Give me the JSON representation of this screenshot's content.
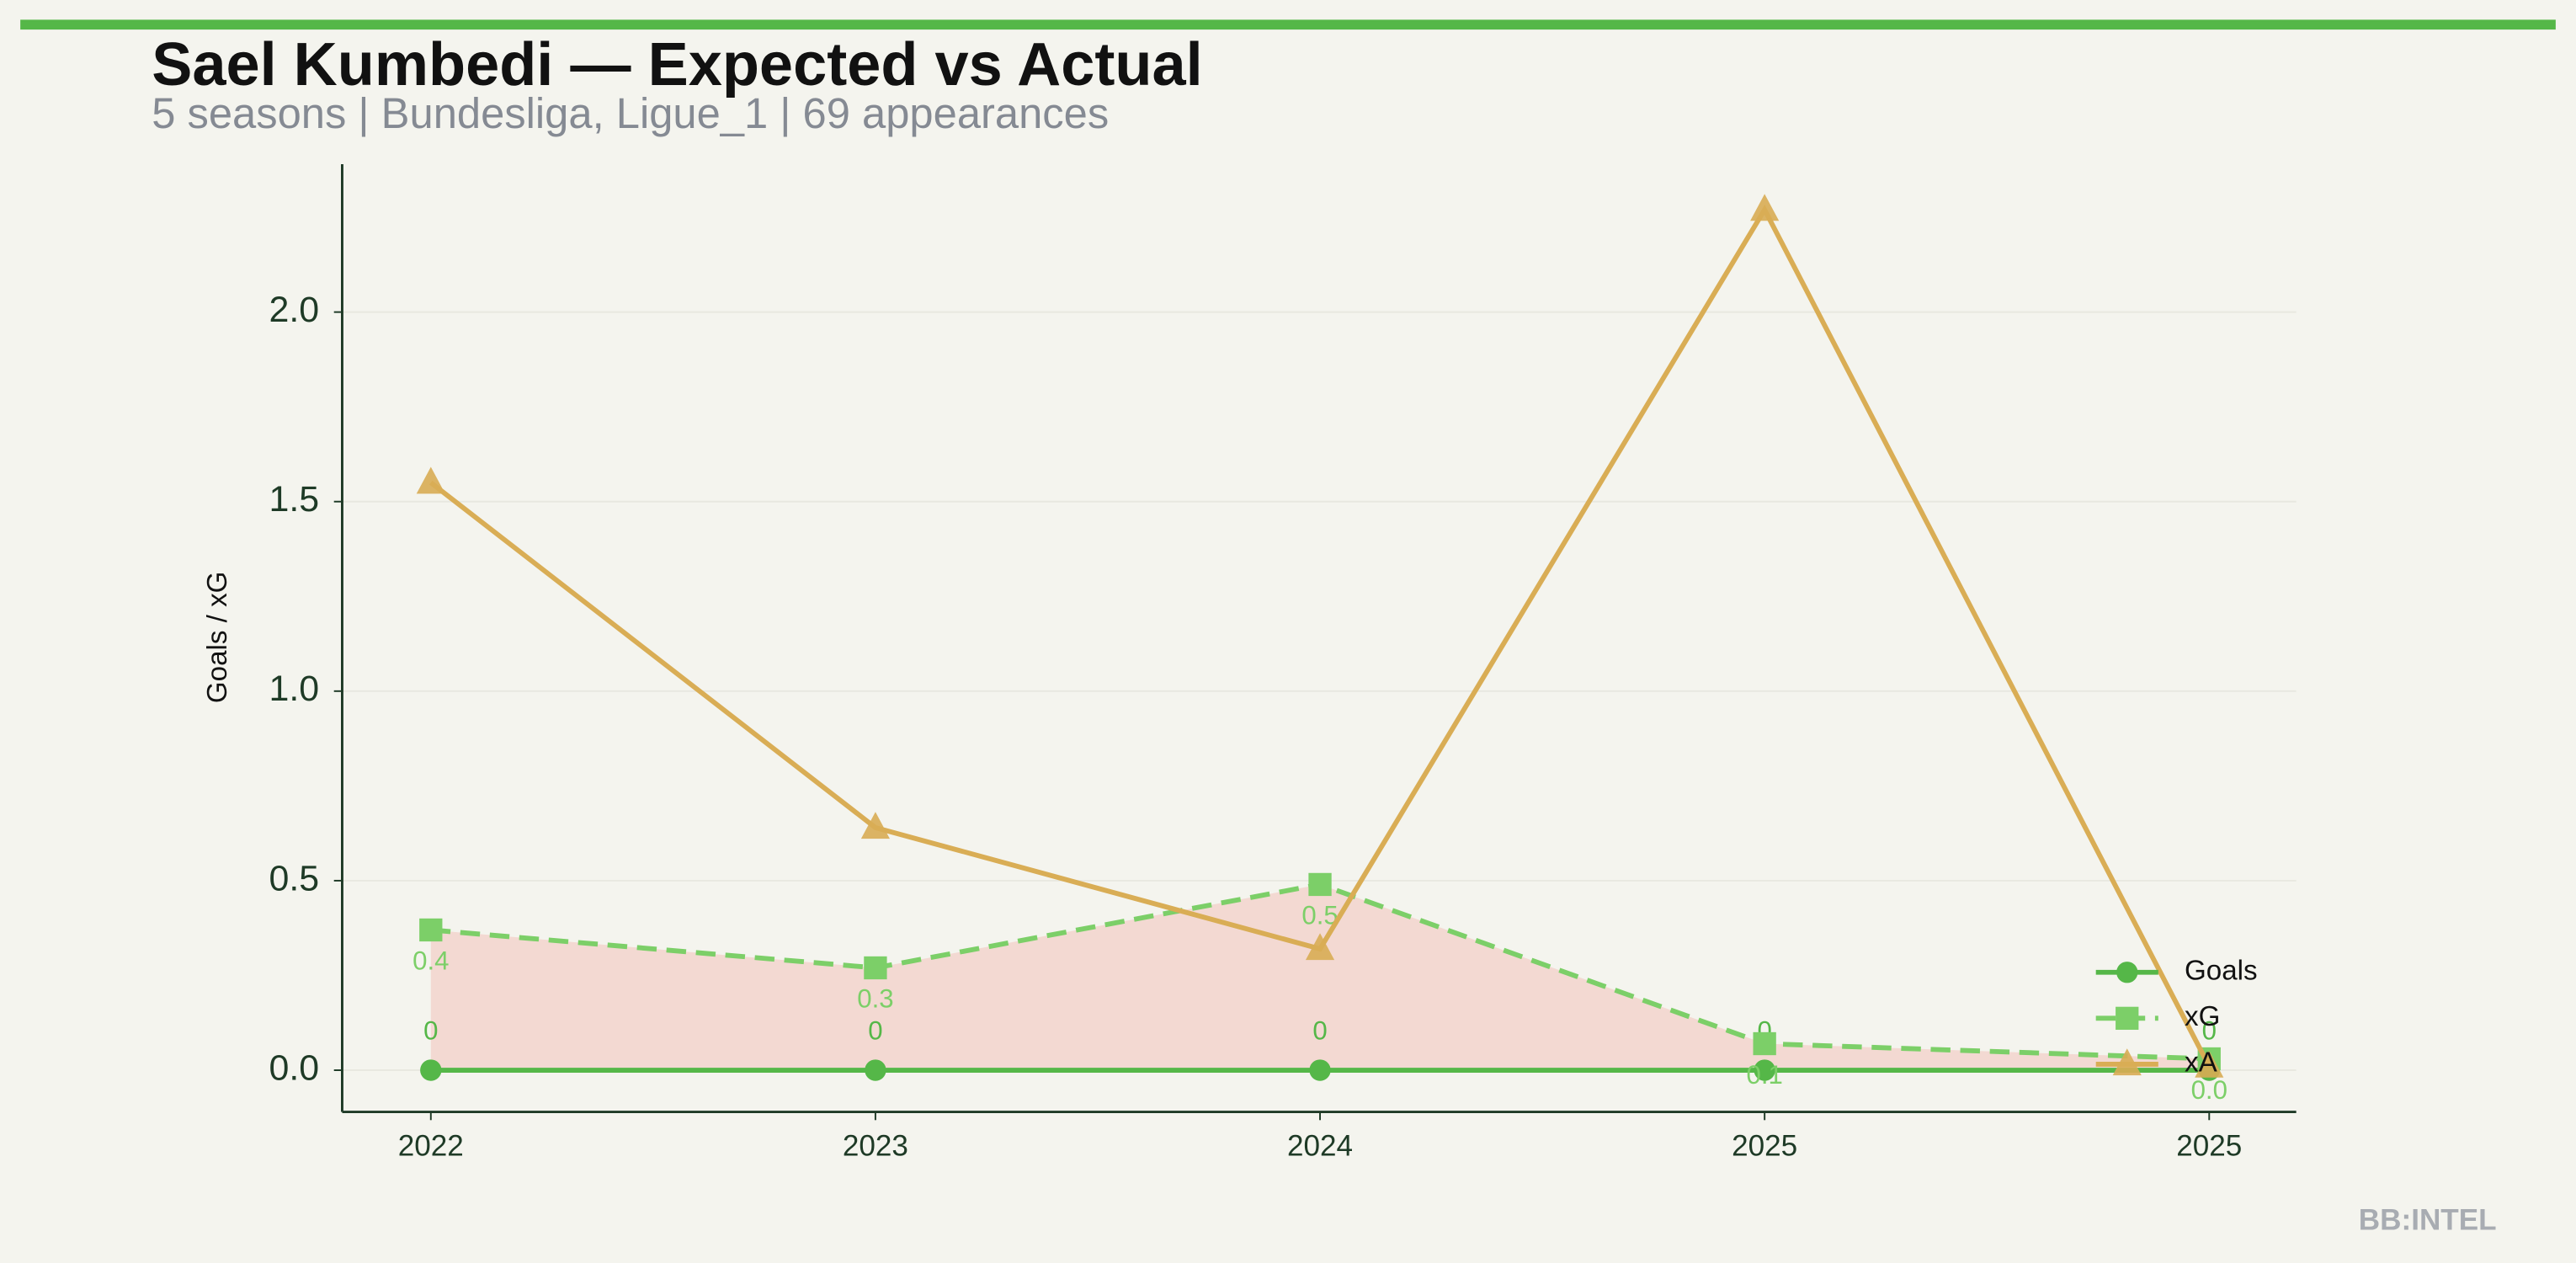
{
  "chart_data": {
    "type": "line",
    "title": "Sael Kumbedi — Expected vs Actual",
    "subtitle": "5 seasons | Bundesliga, Ligue_1 | 69 appearances",
    "ylabel": "Goals / xG",
    "watermark": "BB:INTEL",
    "categories": [
      "2022",
      "2023",
      "2024",
      "2025",
      "2025"
    ],
    "series": [
      {
        "name": "Goals",
        "color": "#55b748",
        "marker": "circle",
        "linestyle": "solid",
        "values": [
          0,
          0,
          0,
          0,
          0
        ],
        "labels_position": "above"
      },
      {
        "name": "xG",
        "color": "#7ccf68",
        "marker": "square",
        "linestyle": "dashed",
        "values": [
          0.37,
          0.27,
          0.49,
          0.07,
          0.03
        ],
        "value_labels": [
          "0.4",
          "0.3",
          "0.5",
          "0.1",
          "0.0"
        ],
        "labels_position": "below"
      },
      {
        "name": "xA",
        "color": "#d9ad55",
        "marker": "triangle",
        "linestyle": "solid",
        "values": [
          1.55,
          0.64,
          0.32,
          2.27,
          0.01
        ]
      }
    ],
    "fill_between": {
      "color": "#f2c6c0"
    },
    "ylim": [
      -0.11,
      2.39
    ],
    "yticks": [
      {
        "value": 0,
        "label": "0.0"
      },
      0.5,
      {
        "value": 1,
        "label": "1.0"
      },
      1.5,
      {
        "value": 2,
        "label": "2.0"
      }
    ],
    "grid": true,
    "legend": "lower right"
  }
}
